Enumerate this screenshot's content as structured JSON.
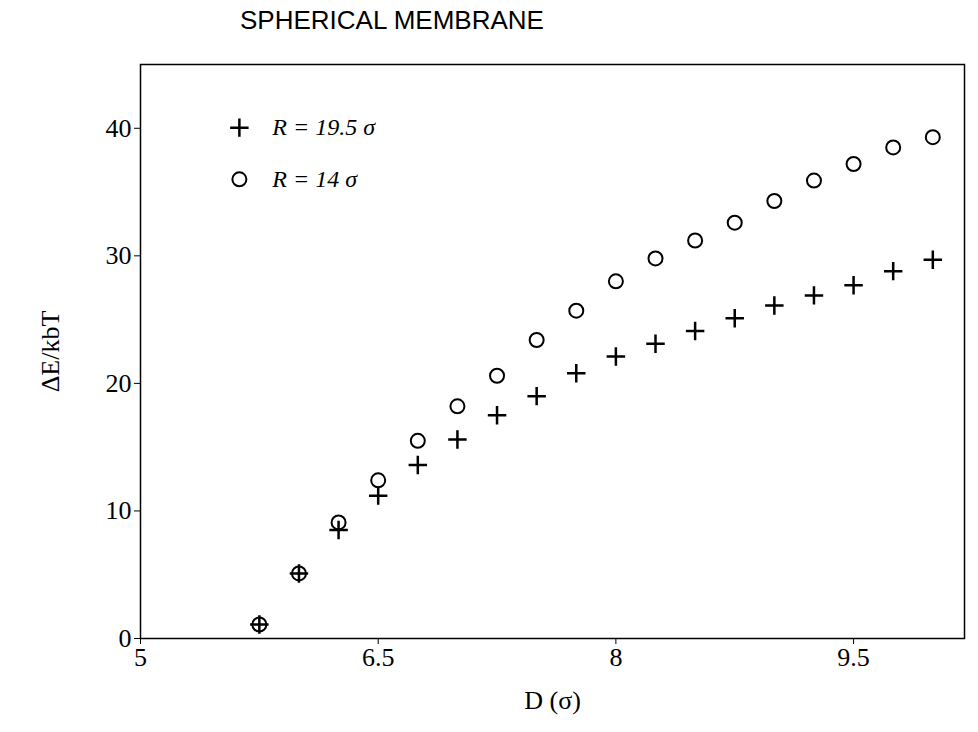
{
  "chart_data": {
    "type": "scatter",
    "title": "SPHERICAL MEMBRANE",
    "x_label": "D (σ)",
    "y_label": "ΔE/kbT",
    "xlim": [
      5,
      10.2
    ],
    "xticks": [
      5,
      6.5,
      8,
      9.5
    ],
    "ylim": [
      0,
      45
    ],
    "yticks": [
      0,
      10,
      20,
      30,
      40
    ],
    "grid": false,
    "legend": "top-left",
    "series": [
      {
        "name": "R = 19.5 σ",
        "color": "#000000",
        "marker": "plus",
        "x": [
          5.75,
          6.0,
          6.25,
          6.5,
          6.75,
          7.0,
          7.25,
          7.5,
          7.75,
          8.0,
          8.25,
          8.5,
          8.75,
          9.0,
          9.25,
          9.5,
          9.75,
          10.0
        ],
        "values": [
          1.1,
          5.1,
          8.5,
          11.2,
          13.6,
          15.6,
          17.5,
          19.0,
          20.8,
          22.1,
          23.1,
          24.1,
          25.1,
          26.1,
          26.9,
          27.7,
          28.8,
          29.7
        ]
      },
      {
        "name": "R = 14 σ",
        "color": "#000000",
        "marker": "circle",
        "x": [
          5.75,
          6.0,
          6.25,
          6.5,
          6.75,
          7.0,
          7.25,
          7.5,
          7.75,
          8.0,
          8.25,
          8.5,
          8.75,
          9.0,
          9.25,
          9.5,
          9.75,
          10.0
        ],
        "values": [
          1.1,
          5.1,
          9.1,
          12.4,
          15.5,
          18.2,
          20.6,
          23.4,
          25.7,
          28.0,
          29.8,
          31.2,
          32.6,
          34.3,
          35.9,
          37.2,
          38.5,
          39.3
        ]
      }
    ]
  }
}
